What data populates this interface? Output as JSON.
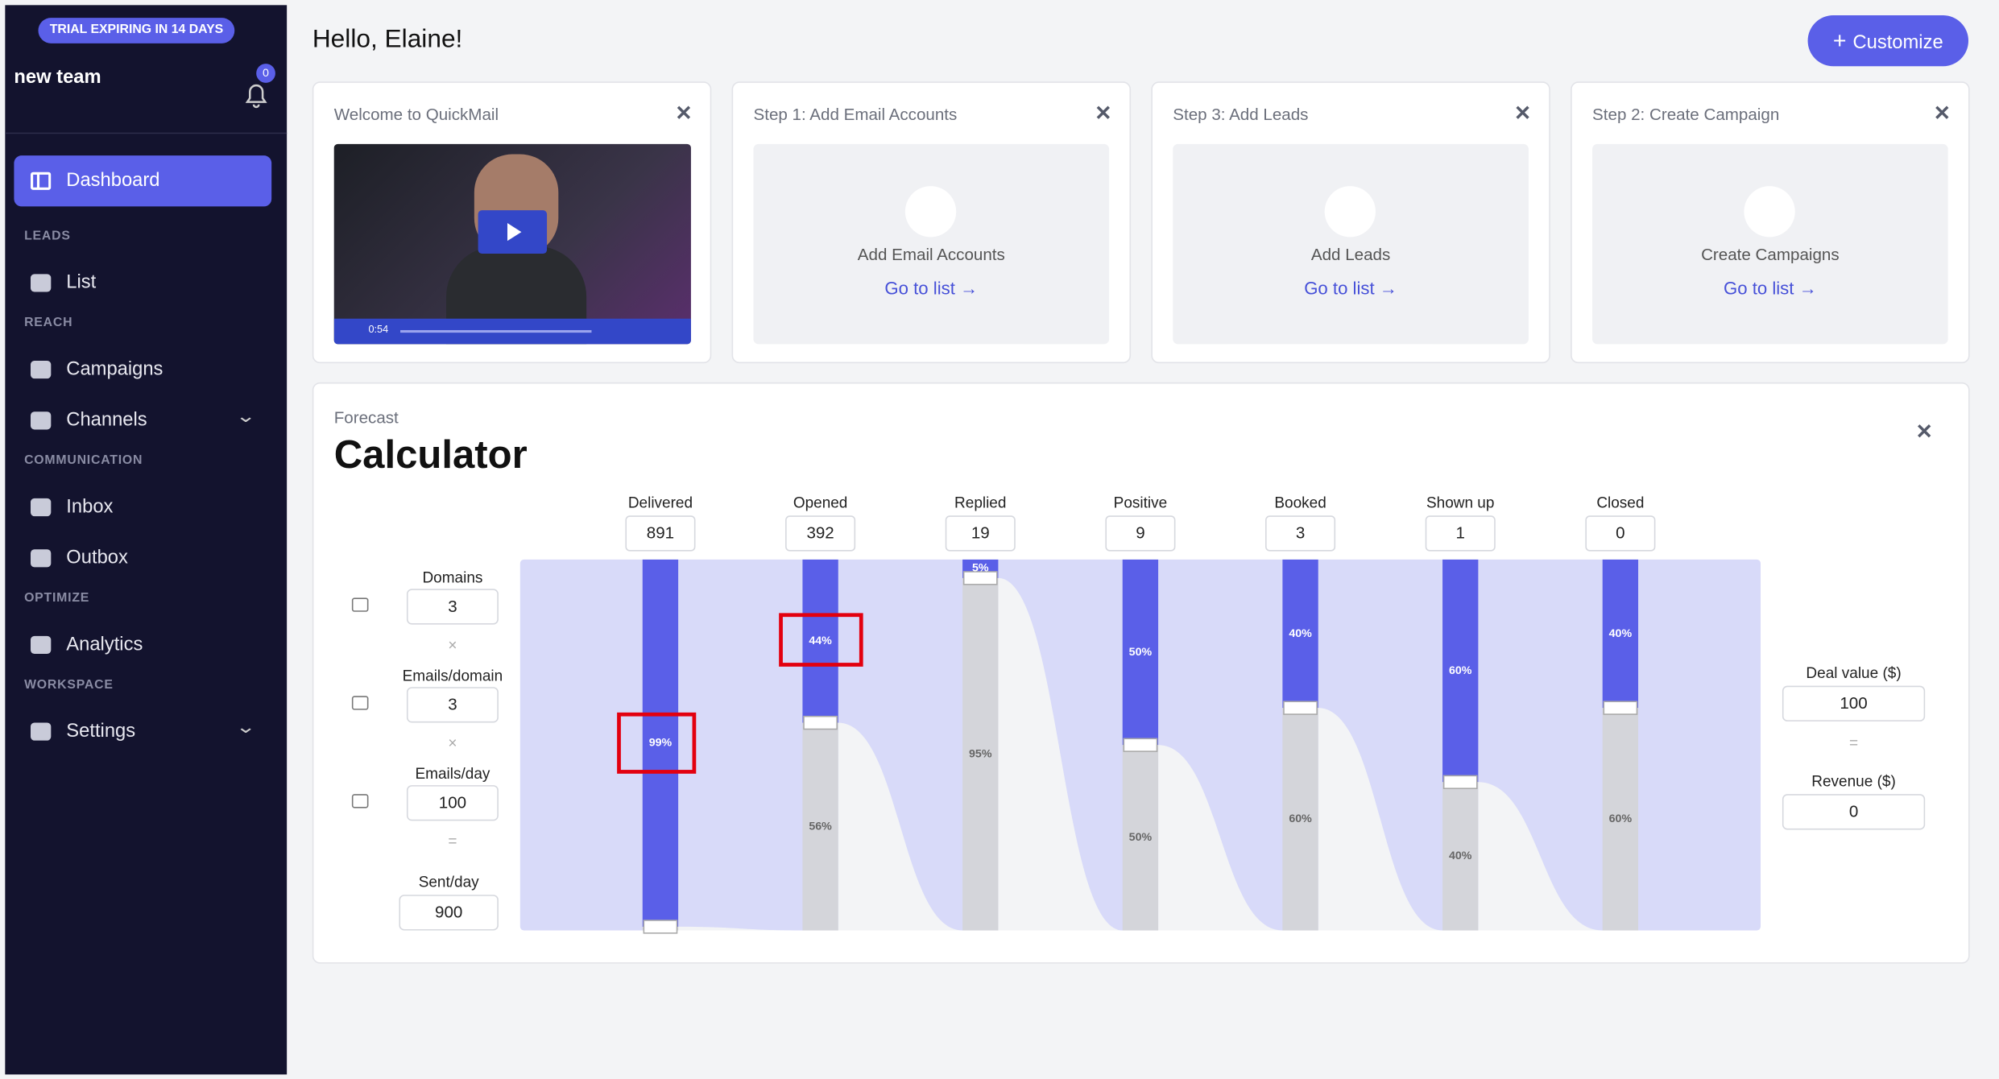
{
  "sidebar": {
    "badge": "TRIAL EXPIRING IN 14 DAYS",
    "team": "new team",
    "notifications": 0,
    "active": "Dashboard",
    "groups": [
      {
        "title": "LEADS",
        "items": [
          "List"
        ]
      },
      {
        "title": "REACH",
        "items": [
          "Campaigns",
          "Channels"
        ]
      },
      {
        "title": "COMMUNICATION",
        "items": [
          "Inbox",
          "Outbox"
        ]
      },
      {
        "title": "OPTIMIZE",
        "items": [
          "Analytics"
        ]
      },
      {
        "title": "WORKSPACE",
        "items": [
          "Settings"
        ]
      }
    ]
  },
  "header": {
    "greeting": "Hello, Elaine!",
    "button": "Customize"
  },
  "welcome": {
    "title": "Welcome to QuickMail",
    "time": "0:54"
  },
  "steps": [
    {
      "title": "Step 1: Add Email Accounts",
      "label": "Add Email Accounts",
      "link": "Go to list"
    },
    {
      "title": "Step 3: Add Leads",
      "label": "Add Leads",
      "link": "Go to list"
    },
    {
      "title": "Step 2: Create Campaign",
      "label": "Create Campaigns",
      "link": "Go to list"
    }
  ],
  "calculator": {
    "kicker": "Forecast",
    "title": "Calculator",
    "inputs": [
      {
        "label": "Domains",
        "value": 3
      },
      {
        "label": "Emails/domain",
        "value": 3
      },
      {
        "label": "Emails/day",
        "value": 100
      }
    ],
    "times": "×",
    "equals": "=",
    "sent": {
      "label": "Sent/day",
      "value": 900
    },
    "deal": {
      "label": "Deal value ($)",
      "value": 100
    },
    "revenue": {
      "label": "Revenue ($)",
      "value": 0
    },
    "stages": [
      {
        "name": "Delivered",
        "value": 891,
        "pass": {
          "value": 99,
          "label": "99%"
        }
      },
      {
        "name": "Opened",
        "value": 392,
        "pass": {
          "value": 44,
          "label": "44%"
        },
        "fail": {
          "value": 56,
          "label": "56%"
        }
      },
      {
        "name": "Replied",
        "value": 19,
        "pass": {
          "value": 5,
          "label": "5%"
        },
        "fail": {
          "value": 95,
          "label": "95%"
        }
      },
      {
        "name": "Positive",
        "value": 9,
        "pass": {
          "value": 50,
          "label": "50%"
        },
        "fail": {
          "value": 50,
          "label": "50%"
        }
      },
      {
        "name": "Booked",
        "value": 3,
        "pass": {
          "value": 40,
          "label": "40%"
        },
        "fail": {
          "value": 60,
          "label": "60%"
        }
      },
      {
        "name": "Shown up",
        "value": 1,
        "pass": {
          "value": 60,
          "label": "60%"
        },
        "fail": {
          "value": 40,
          "label": "40%"
        }
      },
      {
        "name": "Closed",
        "value": 0,
        "pass": {
          "value": 40,
          "label": "40%"
        },
        "fail": {
          "value": 60,
          "label": "60%"
        }
      }
    ]
  }
}
